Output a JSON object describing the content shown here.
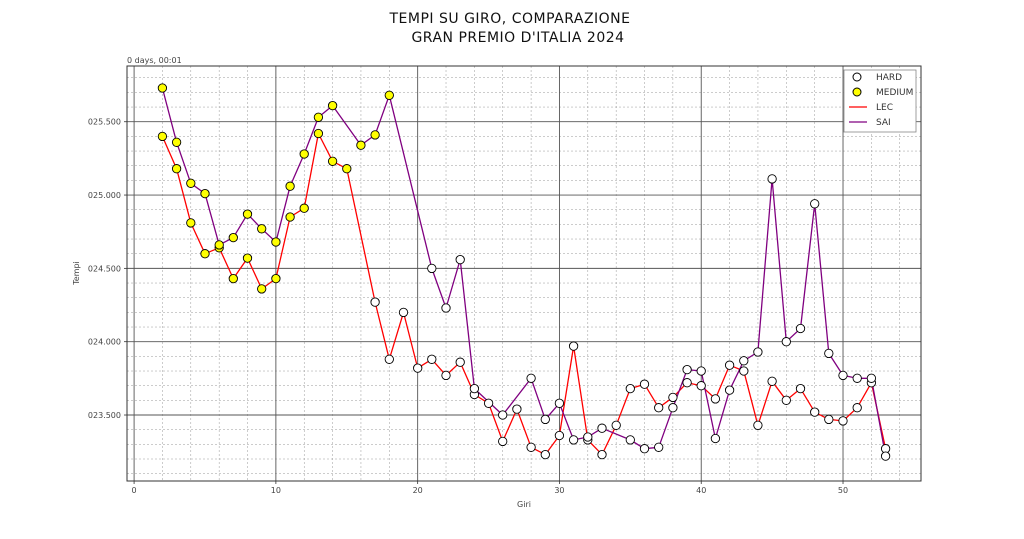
{
  "chart_data": {
    "type": "line",
    "title_line1": "TEMPI SU GIRO, COMPARAZIONE",
    "title_line2": "GRAN PREMIO D'ITALIA 2024",
    "xlabel": "Giri",
    "ylabel": "Tempi",
    "y_offset_label": "0 days, 00:01",
    "xlim": [
      -0.5,
      55.5
    ],
    "ylim": [
      23.05,
      25.88
    ],
    "x_ticks": [
      0,
      10,
      20,
      30,
      40,
      50
    ],
    "y_ticks": [
      23.5,
      24.0,
      24.5,
      25.0,
      25.5
    ],
    "y_tick_labels": [
      "023.500",
      "024.000",
      "024.500",
      "025.000",
      "025.500"
    ],
    "grid": "major-and-minor",
    "legend_position": "top-right",
    "legend": [
      {
        "label": "HARD",
        "kind": "marker",
        "fill": "#ffffff"
      },
      {
        "label": "MEDIUM",
        "kind": "marker",
        "fill": "#ffff00"
      },
      {
        "label": "LEC",
        "kind": "line",
        "color": "#ff0000"
      },
      {
        "label": "SAI",
        "kind": "line",
        "color": "#800080"
      }
    ],
    "series": [
      {
        "name": "LEC",
        "color": "#ff0000",
        "x": [
          2,
          3,
          4,
          5,
          6,
          7,
          8,
          9,
          10,
          11,
          12,
          13,
          14,
          15,
          17,
          18,
          19,
          20,
          21,
          22,
          23,
          24,
          25,
          26,
          27,
          28,
          29,
          30,
          31,
          32,
          33,
          34,
          35,
          36,
          37,
          38,
          39,
          40,
          41,
          42,
          43,
          44,
          45,
          46,
          47,
          48,
          49,
          50,
          51,
          52,
          53
        ],
        "y": [
          25.4,
          25.18,
          24.81,
          24.6,
          24.64,
          24.43,
          24.57,
          24.36,
          24.43,
          24.85,
          24.91,
          25.42,
          25.23,
          25.18,
          24.27,
          23.88,
          24.2,
          23.82,
          23.88,
          23.77,
          23.86,
          23.64,
          23.58,
          23.32,
          23.54,
          23.28,
          23.23,
          23.36,
          23.97,
          23.33,
          23.23,
          23.43,
          23.68,
          23.71,
          23.55,
          23.62,
          23.72,
          23.7,
          23.61,
          23.84,
          23.8,
          23.43,
          23.73,
          23.6,
          23.68,
          23.52,
          23.47,
          23.46,
          23.55,
          23.72,
          23.27
        ],
        "compounds": [
          "MEDIUM",
          "MEDIUM",
          "MEDIUM",
          "MEDIUM",
          "MEDIUM",
          "MEDIUM",
          "MEDIUM",
          "MEDIUM",
          "MEDIUM",
          "MEDIUM",
          "MEDIUM",
          "MEDIUM",
          "MEDIUM",
          "MEDIUM",
          "HARD",
          "HARD",
          "HARD",
          "HARD",
          "HARD",
          "HARD",
          "HARD",
          "HARD",
          "HARD",
          "HARD",
          "HARD",
          "HARD",
          "HARD",
          "HARD",
          "HARD",
          "HARD",
          "HARD",
          "HARD",
          "HARD",
          "HARD",
          "HARD",
          "HARD",
          "HARD",
          "HARD",
          "HARD",
          "HARD",
          "HARD",
          "HARD",
          "HARD",
          "HARD",
          "HARD",
          "HARD",
          "HARD",
          "HARD",
          "HARD",
          "HARD",
          "HARD"
        ]
      },
      {
        "name": "SAI",
        "color": "#800080",
        "x": [
          2,
          3,
          4,
          5,
          6,
          7,
          8,
          9,
          10,
          11,
          12,
          13,
          14,
          16,
          17,
          18,
          21,
          22,
          23,
          24,
          26,
          28,
          29,
          30,
          31,
          32,
          33,
          35,
          36,
          37,
          38,
          39,
          40,
          41,
          42,
          43,
          44,
          45,
          46,
          47,
          48,
          49,
          50,
          51,
          52,
          53
        ],
        "y": [
          25.73,
          25.36,
          25.08,
          25.01,
          24.66,
          24.71,
          24.87,
          24.77,
          24.68,
          25.06,
          25.28,
          25.53,
          25.61,
          25.34,
          25.41,
          25.68,
          24.5,
          24.23,
          24.56,
          23.68,
          23.5,
          23.75,
          23.47,
          23.58,
          23.33,
          23.35,
          23.41,
          23.33,
          23.27,
          23.28,
          23.55,
          23.81,
          23.8,
          23.34,
          23.67,
          23.87,
          23.93,
          25.11,
          24.0,
          24.09,
          24.94,
          23.92,
          23.77,
          23.75,
          23.75,
          23.22
        ],
        "compounds": [
          "MEDIUM",
          "MEDIUM",
          "MEDIUM",
          "MEDIUM",
          "MEDIUM",
          "MEDIUM",
          "MEDIUM",
          "MEDIUM",
          "MEDIUM",
          "MEDIUM",
          "MEDIUM",
          "MEDIUM",
          "MEDIUM",
          "MEDIUM",
          "MEDIUM",
          "MEDIUM",
          "HARD",
          "HARD",
          "HARD",
          "HARD",
          "HARD",
          "HARD",
          "HARD",
          "HARD",
          "HARD",
          "HARD",
          "HARD",
          "HARD",
          "HARD",
          "HARD",
          "HARD",
          "HARD",
          "HARD",
          "HARD",
          "HARD",
          "HARD",
          "HARD",
          "HARD",
          "HARD",
          "HARD",
          "HARD",
          "HARD",
          "HARD",
          "HARD",
          "HARD",
          "HARD"
        ]
      }
    ]
  },
  "colors": {
    "hard_marker": "#ffffff",
    "medium_marker": "#ffff00",
    "marker_edge": "#000000",
    "grid_major": "#555555",
    "grid_minor": "#999999",
    "background": "#ffffff"
  }
}
